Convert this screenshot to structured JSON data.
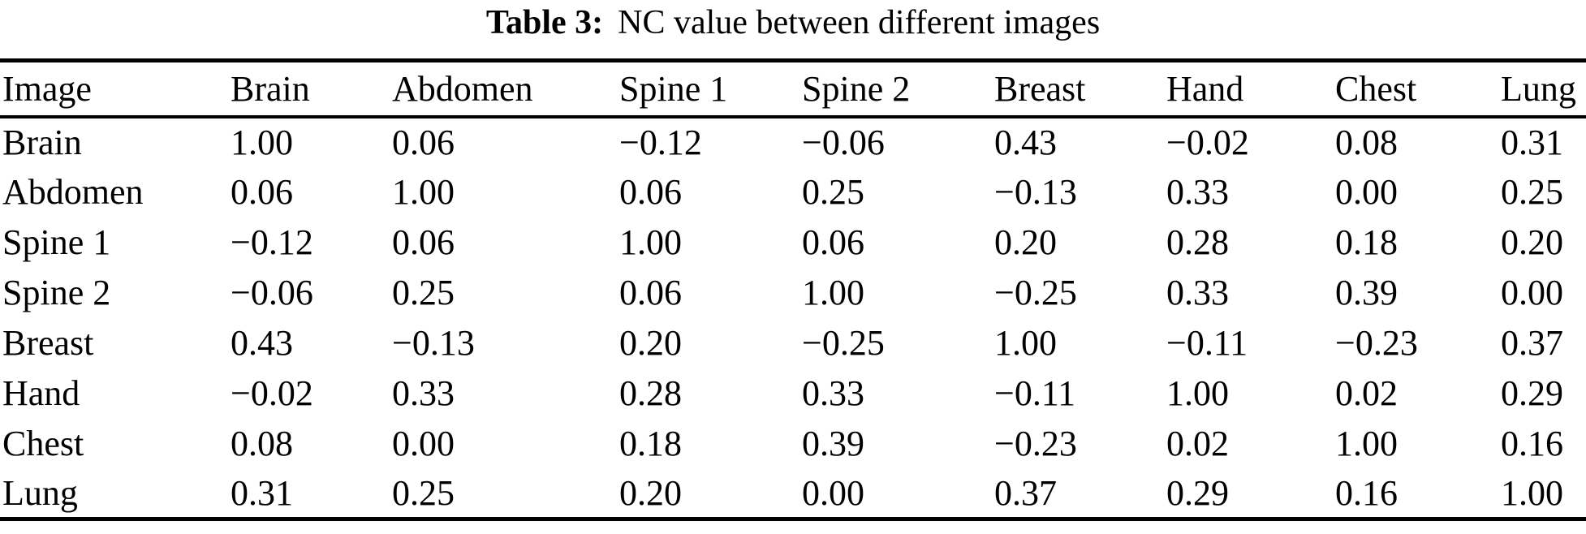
{
  "caption": {
    "label": "Table 3:",
    "text": "NC value between different images"
  },
  "table": {
    "columns": [
      "Image",
      "Brain",
      "Abdomen",
      "Spine 1",
      "Spine 2",
      "Breast",
      "Hand",
      "Chest",
      "Lung"
    ],
    "rows": [
      {
        "label": "Brain",
        "values": [
          "1.00",
          "0.06",
          "−0.12",
          "−0.06",
          "0.43",
          "−0.02",
          "0.08",
          "0.31"
        ]
      },
      {
        "label": "Abdomen",
        "values": [
          "0.06",
          "1.00",
          "0.06",
          "0.25",
          "−0.13",
          "0.33",
          "0.00",
          "0.25"
        ]
      },
      {
        "label": "Spine 1",
        "values": [
          "−0.12",
          "0.06",
          "1.00",
          "0.06",
          "0.20",
          "0.28",
          "0.18",
          "0.20"
        ]
      },
      {
        "label": "Spine 2",
        "values": [
          "−0.06",
          "0.25",
          "0.06",
          "1.00",
          "−0.25",
          "0.33",
          "0.39",
          "0.00"
        ]
      },
      {
        "label": "Breast",
        "values": [
          "0.43",
          "−0.13",
          "0.20",
          "−0.25",
          "1.00",
          "−0.11",
          "−0.23",
          "0.37"
        ]
      },
      {
        "label": "Hand",
        "values": [
          "−0.02",
          "0.33",
          "0.28",
          "0.33",
          "−0.11",
          "1.00",
          "0.02",
          "0.29"
        ]
      },
      {
        "label": "Chest",
        "values": [
          "0.08",
          "0.00",
          "0.18",
          "0.39",
          "−0.23",
          "0.02",
          "1.00",
          "0.16"
        ]
      },
      {
        "label": "Lung",
        "values": [
          "0.31",
          "0.25",
          "0.20",
          "0.00",
          "0.37",
          "0.29",
          "0.16",
          "1.00"
        ]
      }
    ]
  },
  "colors": {
    "text": "#000000",
    "background": "#ffffff",
    "rule": "#000000"
  }
}
